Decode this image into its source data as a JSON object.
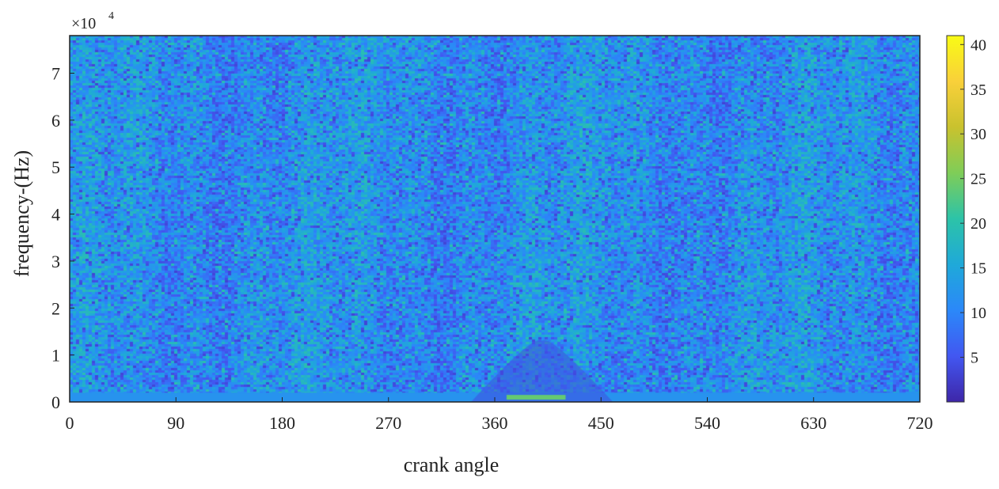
{
  "chart_data": {
    "type": "heatmap",
    "title": "",
    "xlabel": "crank angle",
    "ylabel": "frequency-(Hz)",
    "x_ticks": [
      0,
      90,
      180,
      270,
      360,
      450,
      540,
      630,
      720
    ],
    "y_ticks": [
      0,
      1,
      2,
      3,
      4,
      5,
      6,
      7
    ],
    "y_multiplier_label": "×10",
    "y_multiplier_exponent": "4",
    "xlim": [
      0,
      720
    ],
    "ylim": [
      0,
      7.8
    ],
    "colorbar": {
      "ticks": [
        5,
        10,
        15,
        20,
        25,
        30,
        35,
        40
      ],
      "range": [
        0,
        41
      ],
      "colormap": "parula",
      "colors": [
        "#3e26a8",
        "#4257f1",
        "#2b88f9",
        "#1fa9d9",
        "#2cc3a8",
        "#7fcd58",
        "#c9c22e",
        "#f9d03a",
        "#f9fb15"
      ]
    },
    "dominant_level_range": [
      6,
      17
    ],
    "features": [
      {
        "label": "low-frequency band",
        "x_range": [
          0,
          720
        ],
        "y_range": [
          0,
          0.2
        ],
        "level": 12
      },
      {
        "label": "combustion burst",
        "x_range": [
          340,
          460
        ],
        "y_range": [
          0,
          1.3
        ],
        "level": 4
      },
      {
        "label": "high-energy strip",
        "x_range": [
          370,
          420
        ],
        "y_range": [
          0.05,
          0.15
        ],
        "level": 24
      }
    ],
    "grid": false,
    "legend": "none"
  }
}
